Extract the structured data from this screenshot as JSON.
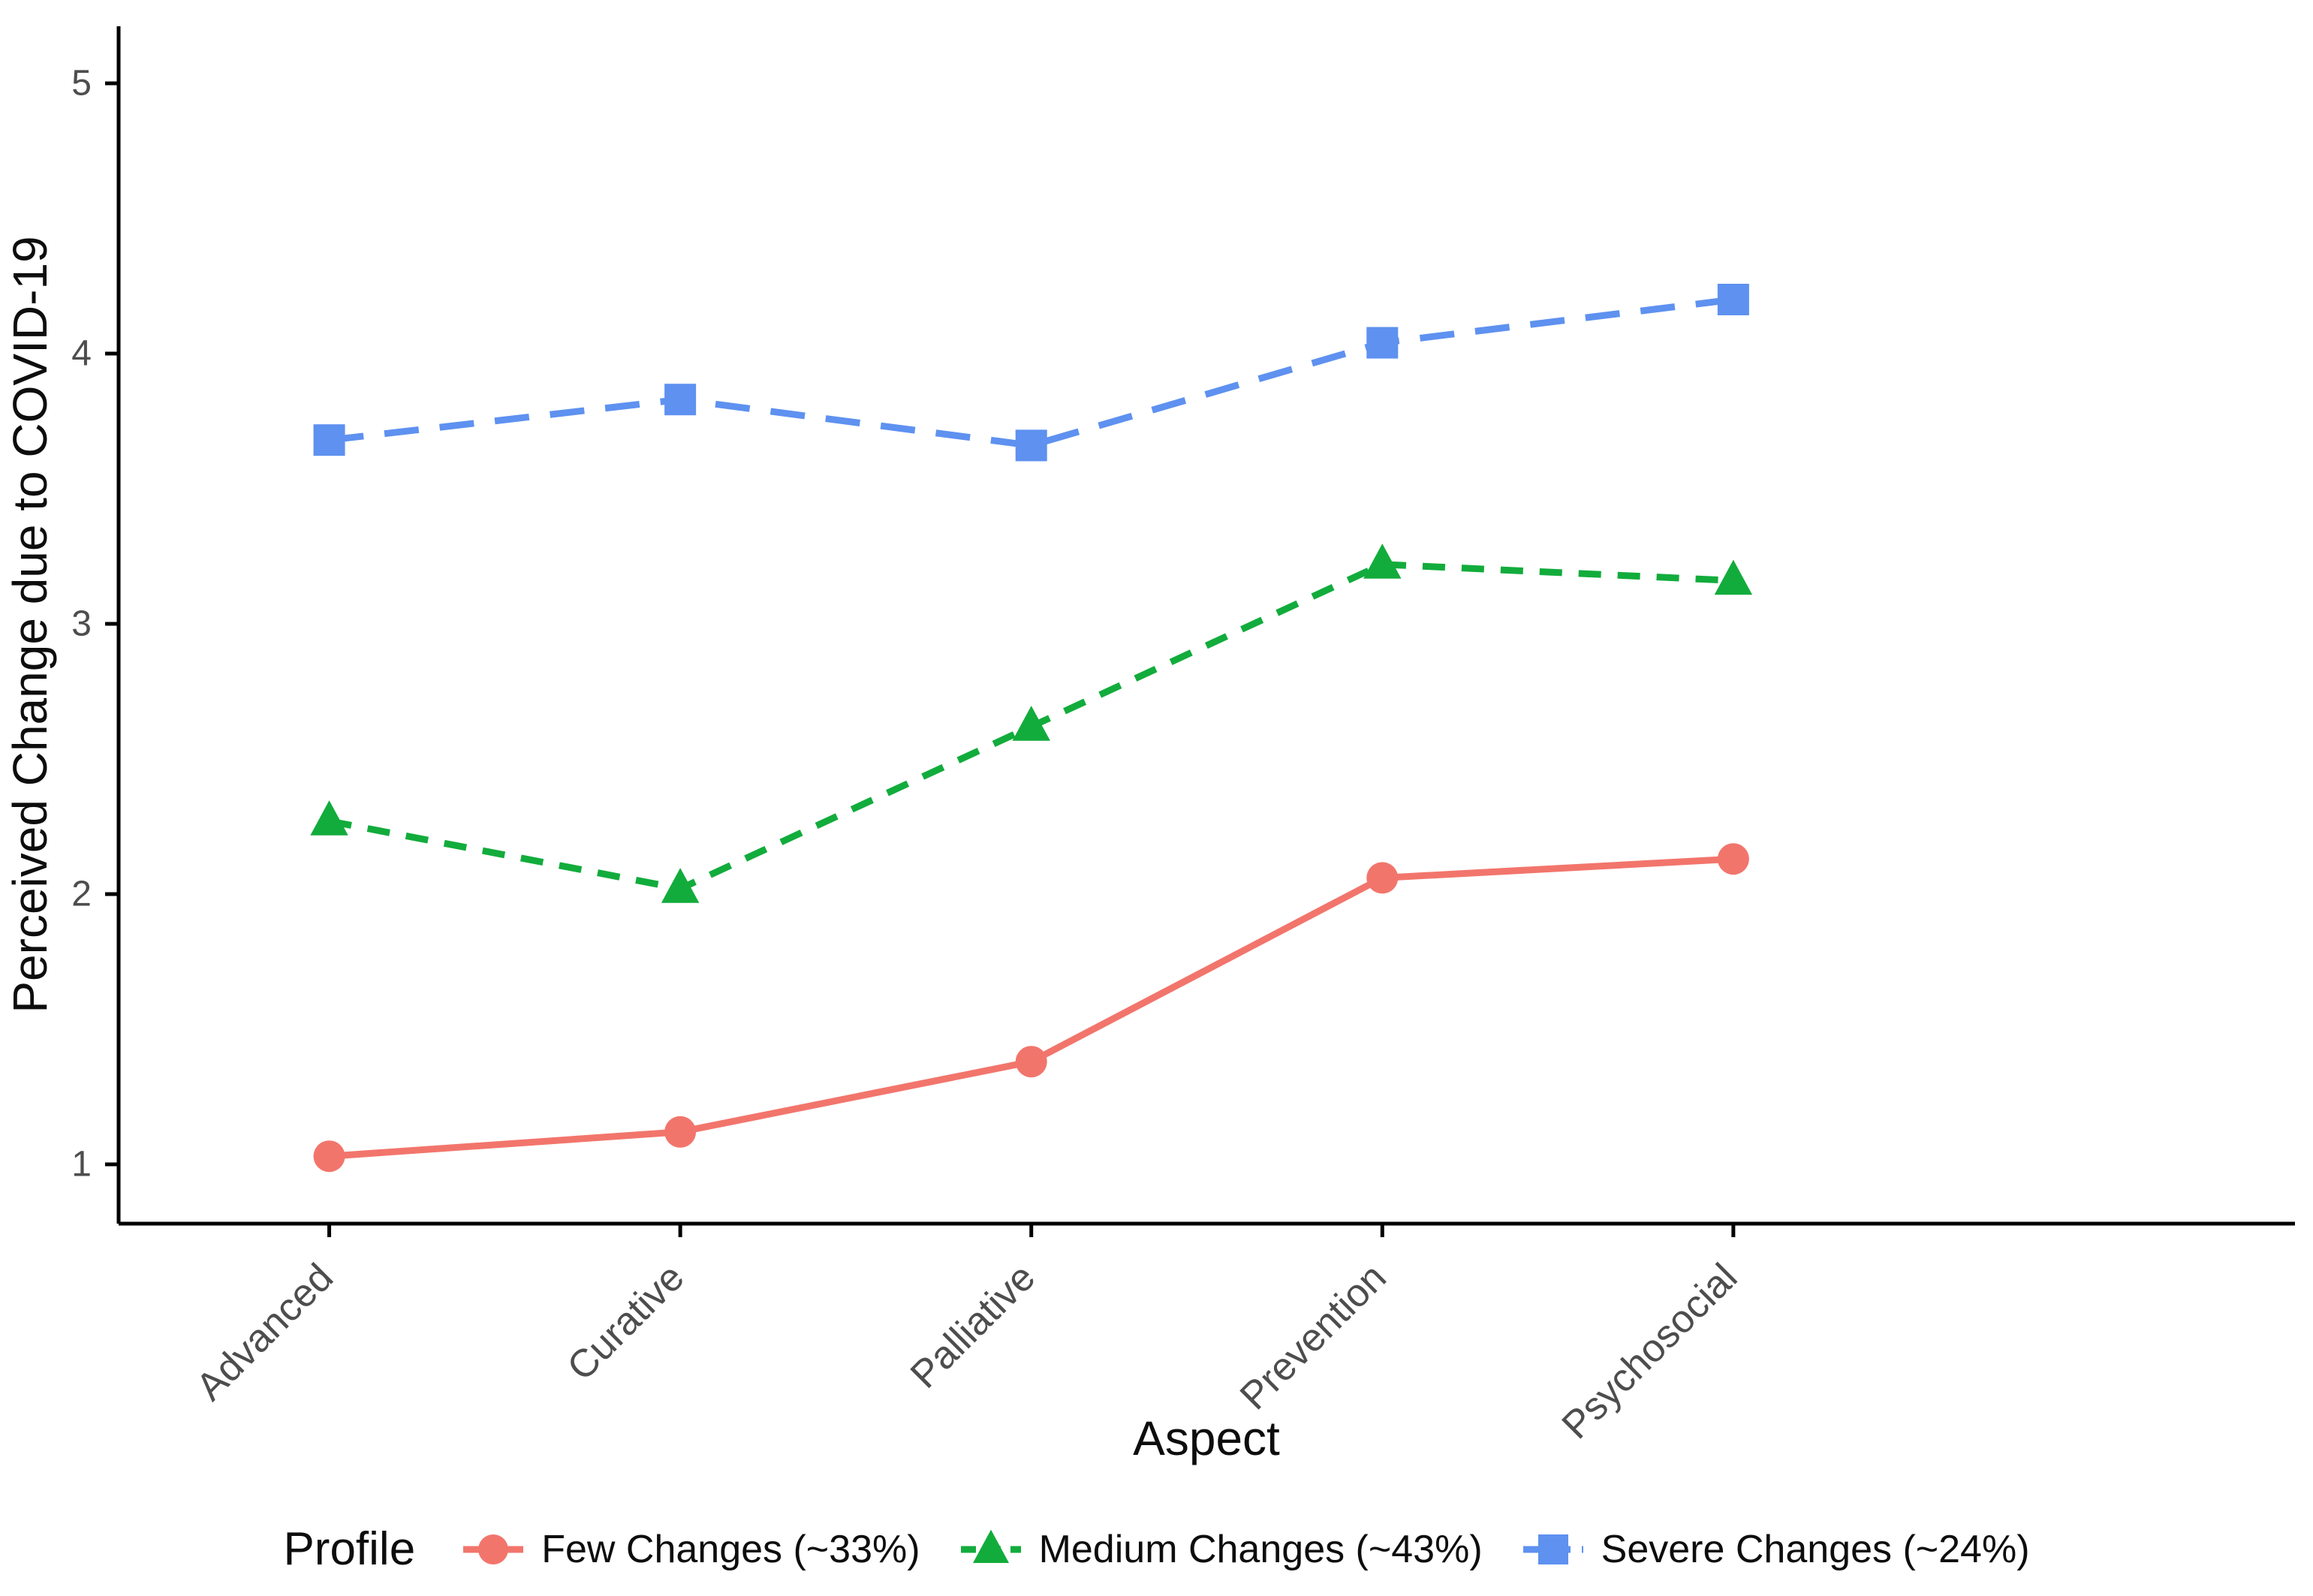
{
  "figure": {
    "legend_title": "Profile",
    "x_axis_title": "Aspect",
    "y_axis_title": "Perceived Change due to COVID-19"
  },
  "chart_data": {
    "type": "line",
    "title": "",
    "xlabel": "Aspect",
    "ylabel": "Perceived Change due to COVID-19",
    "categories": [
      "Advanced",
      "Curative",
      "Palliative",
      "Prevention",
      "Psychosocial"
    ],
    "y_ticks": [
      1,
      2,
      3,
      4,
      5
    ],
    "ylim": [
      0.78,
      5.2
    ],
    "grid": false,
    "legend_position": "bottom",
    "legend_title": "Profile",
    "axis_color": "#000000",
    "tick_label_color": "#4d4d4d",
    "series": [
      {
        "name": "Few Changes (~33%)",
        "color": "#F2756C",
        "marker": "circle",
        "linestyle": "solid",
        "values": [
          1.03,
          1.12,
          1.38,
          2.06,
          2.13
        ]
      },
      {
        "name": "Medium Changes (~43%)",
        "color": "#12AC3C",
        "marker": "triangle",
        "linestyle": "dashed",
        "values": [
          2.27,
          2.02,
          2.62,
          3.22,
          3.16
        ]
      },
      {
        "name": "Severe Changes (~24%)",
        "color": "#5E91F0",
        "marker": "square",
        "linestyle": "longdash",
        "values": [
          3.68,
          3.83,
          3.66,
          4.04,
          4.2
        ]
      }
    ]
  }
}
